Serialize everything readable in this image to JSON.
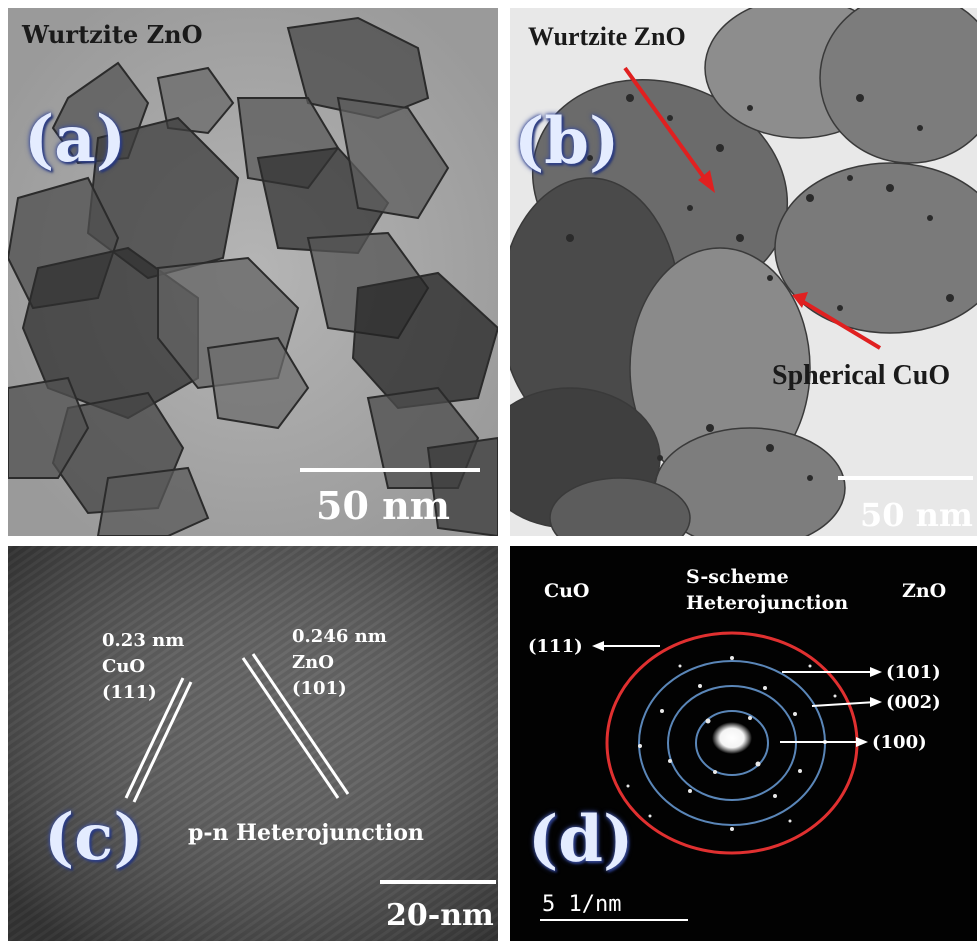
{
  "panel_a": {
    "letter": "(a)",
    "title": "Wurtzite ZnO",
    "scale": "50 nm"
  },
  "panel_b": {
    "letter": "(b)",
    "label_top": "Wurtzite ZnO",
    "label_bottom": "Spherical CuO",
    "scale": "50 nm",
    "arrow_color": "#e02020"
  },
  "panel_c": {
    "letter": "(c)",
    "cuo_spacing": "0.23 nm",
    "cuo_name": "CuO",
    "cuo_plane": "(111)",
    "zno_spacing": "0.246 nm",
    "zno_name": "ZnO",
    "zno_plane": "(101)",
    "junction": "p-n Heterojunction",
    "scale": "20-nm"
  },
  "panel_d": {
    "letter": "(d)",
    "left_label": "CuO",
    "center_line1": "S-scheme",
    "center_line2": "Heterojunction",
    "right_label": "ZnO",
    "ring_111": "(111)",
    "ring_101": "(101)",
    "ring_002": "(002)",
    "ring_100": "(100)",
    "scale": "5 1/nm",
    "outer_ring_color": "#e03030",
    "inner_ring_color": "#5a86b8"
  }
}
